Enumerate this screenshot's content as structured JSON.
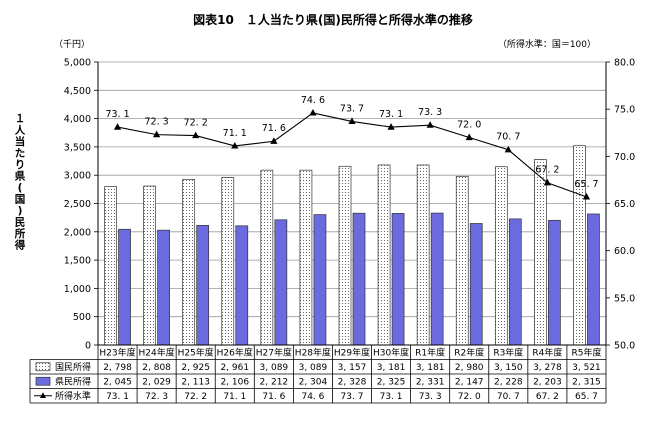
{
  "chart_data": {
    "type": "bar",
    "title": "図表10　１人当たり県(国)民所得と所得水準の推移",
    "ylabel": "１人当たり県(国)民所得",
    "y_unit": "（千円）",
    "y2_unit": "（所得水準：国＝100）",
    "ylim": [
      0,
      5000
    ],
    "y2lim": [
      50,
      80
    ],
    "yticks": [
      "0",
      "500",
      "1,000",
      "1,500",
      "2,000",
      "2,500",
      "3,000",
      "3,500",
      "4,000",
      "4,500",
      "5,000"
    ],
    "y2ticks": [
      "50.0",
      "55.0",
      "60.0",
      "65.0",
      "70.0",
      "75.0",
      "80.0"
    ],
    "categories": [
      "H23年度",
      "H24年度",
      "H25年度",
      "H26年度",
      "H27年度",
      "H28年度",
      "H29年度",
      "H30年度",
      "R1年度",
      "R2年度",
      "R3年度",
      "R4年度",
      "R5年度"
    ],
    "grid": true,
    "series": [
      {
        "name": "国民所得",
        "type": "bar",
        "values": [
          2798,
          2808,
          2925,
          2961,
          3089,
          3089,
          3157,
          3181,
          3181,
          2980,
          3150,
          3278,
          3521
        ],
        "labels": [
          "2, 798",
          "2, 808",
          "2, 925",
          "2, 961",
          "3, 089",
          "3, 089",
          "3, 157",
          "3, 181",
          "3, 181",
          "2, 980",
          "3, 150",
          "3, 278",
          "3, 521"
        ]
      },
      {
        "name": "県民所得",
        "type": "bar",
        "values": [
          2045,
          2029,
          2113,
          2106,
          2212,
          2304,
          2328,
          2325,
          2331,
          2147,
          2228,
          2203,
          2315
        ],
        "labels": [
          "2, 045",
          "2, 029",
          "2, 113",
          "2, 106",
          "2, 212",
          "2, 304",
          "2, 328",
          "2, 325",
          "2, 331",
          "2, 147",
          "2, 228",
          "2, 203",
          "2, 315"
        ],
        "color": "#6b6bdf"
      },
      {
        "name": "所得水準",
        "type": "line",
        "axis": "right",
        "values": [
          73.1,
          72.3,
          72.2,
          71.1,
          71.6,
          74.6,
          73.7,
          73.1,
          73.3,
          72.0,
          70.7,
          67.2,
          65.7
        ],
        "labels": [
          "73. 1",
          "72. 3",
          "72. 2",
          "71. 1",
          "71. 6",
          "74. 6",
          "73. 7",
          "73. 1",
          "73. 3",
          "72. 0",
          "70. 7",
          "67. 2",
          "65. 7"
        ]
      }
    ]
  }
}
